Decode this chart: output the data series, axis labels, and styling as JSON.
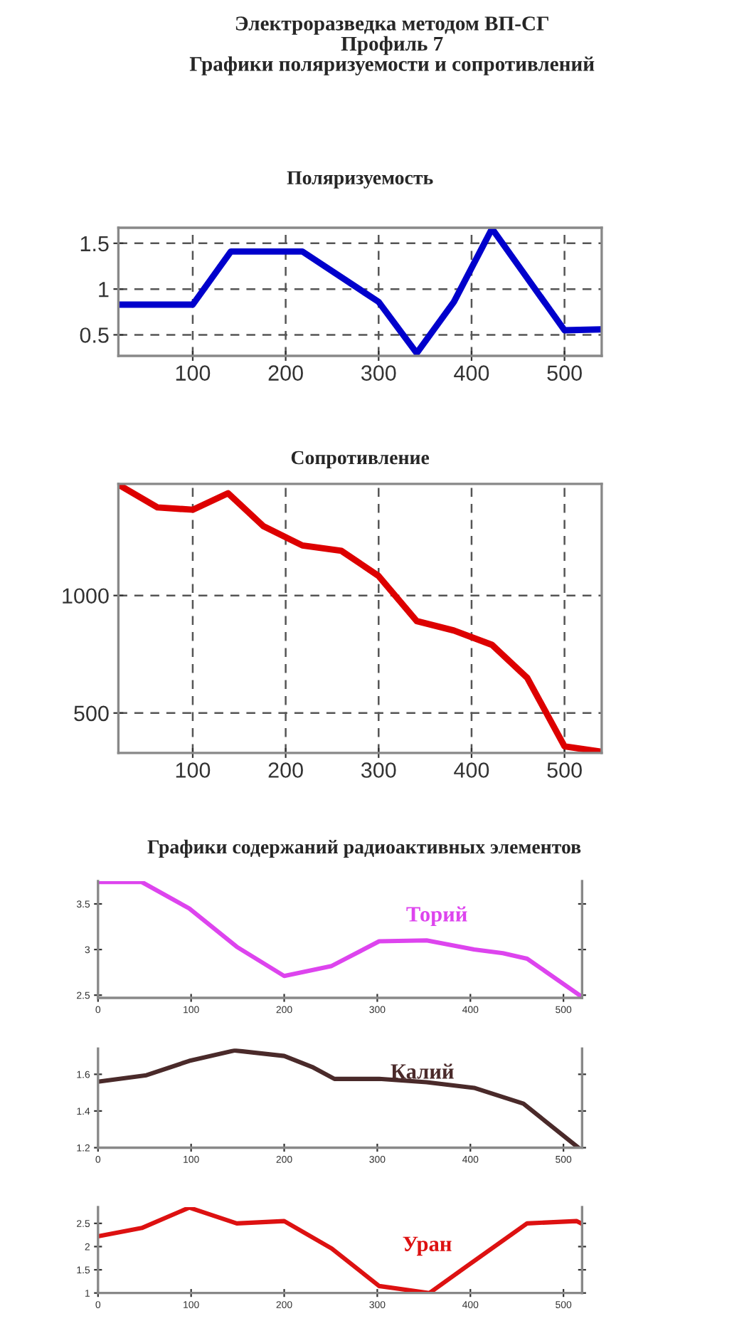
{
  "chart_data": [
    {
      "type": "line",
      "title": "Электроразведка методом ВП-СГ\nПрофиль 7\nГрафики поляризуемости и сопротивлений",
      "subtitle": "Поляризуемость",
      "grid": true,
      "xlim": [
        20,
        540
      ],
      "xticks": [
        100,
        200,
        300,
        400,
        500
      ],
      "ylim": [
        0.27,
        1.67
      ],
      "yticks": [
        0.5,
        1,
        1.5
      ],
      "series": [
        {
          "color": "#0000cc",
          "x": [
            20,
            100,
            141,
            218,
            300,
            341,
            381,
            422,
            500,
            540
          ],
          "values": [
            0.83,
            0.83,
            1.41,
            1.41,
            0.86,
            0.3,
            0.86,
            1.66,
            0.55,
            0.56
          ]
        }
      ]
    },
    {
      "type": "line",
      "title": "Сопротивление",
      "grid": true,
      "xlim": [
        20,
        540
      ],
      "xticks": [
        100,
        200,
        300,
        400,
        500
      ],
      "ylim": [
        330,
        1475
      ],
      "yticks": [
        500,
        1000
      ],
      "series": [
        {
          "color": "#dd0000",
          "x": [
            20,
            62,
            100,
            138,
            176,
            218,
            260,
            300,
            341,
            381,
            422,
            460,
            500,
            540
          ],
          "values": [
            1472,
            1375,
            1365,
            1435,
            1295,
            1213,
            1190,
            1083,
            891,
            851,
            790,
            649,
            358,
            335
          ]
        }
      ]
    },
    {
      "type": "line",
      "title": "Графики содержаний радиоактивных элементов",
      "xlim": [
        0,
        520
      ],
      "xticks": [
        0,
        100,
        200,
        300,
        400,
        500
      ],
      "ylim": [
        2.47,
        3.75
      ],
      "yticks": [
        2.5,
        3,
        3.5
      ],
      "series": [
        {
          "name": "Торий",
          "color": "#dd44ee",
          "x": [
            0,
            47,
            98,
            149,
            200,
            251,
            302,
            353,
            404,
            435,
            461,
            520
          ],
          "values": [
            3.74,
            3.74,
            3.45,
            3.03,
            2.71,
            2.82,
            3.09,
            3.1,
            3.0,
            2.96,
            2.9,
            2.48
          ]
        }
      ]
    },
    {
      "type": "line",
      "xlim": [
        0,
        520
      ],
      "xticks": [
        0,
        100,
        200,
        300,
        400,
        500
      ],
      "ylim": [
        1.2,
        1.74
      ],
      "yticks": [
        1.2,
        1.4,
        1.6
      ],
      "series": [
        {
          "name": "Калий",
          "color": "#4a2a2a",
          "x": [
            0,
            52,
            98,
            147,
            200,
            230,
            254,
            302,
            353,
            404,
            457,
            516
          ],
          "values": [
            1.56,
            1.595,
            1.673,
            1.73,
            1.7,
            1.64,
            1.575,
            1.575,
            1.557,
            1.526,
            1.44,
            1.2
          ]
        }
      ]
    },
    {
      "type": "line",
      "xlim": [
        0,
        520
      ],
      "xticks": [
        0,
        100,
        200,
        300,
        400,
        500
      ],
      "ylim": [
        1,
        2.85
      ],
      "yticks": [
        1,
        1.5,
        2,
        2.5
      ],
      "series": [
        {
          "name": "Уран",
          "color": "#dd1111",
          "x": [
            0,
            47,
            98,
            149,
            200,
            251,
            302,
            356,
            404,
            461,
            514,
            520
          ],
          "values": [
            2.22,
            2.4,
            2.84,
            2.5,
            2.55,
            1.96,
            1.15,
            1.0,
            1.69,
            2.5,
            2.55,
            2.49
          ]
        }
      ]
    }
  ]
}
